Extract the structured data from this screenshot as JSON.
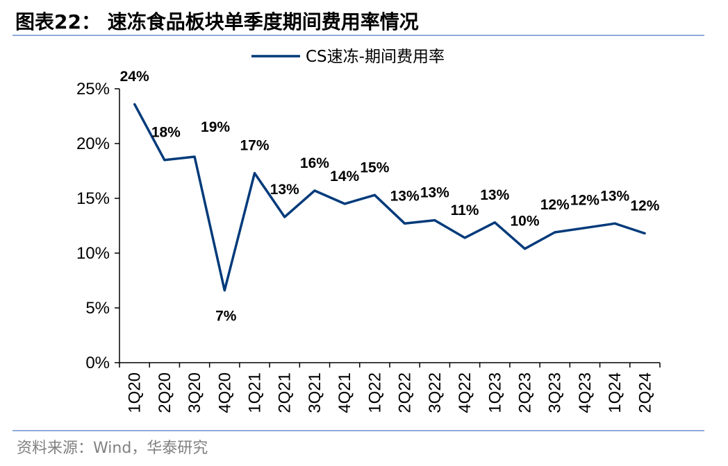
{
  "title": "图表22：  速冻食品板块单季度期间费用率情况",
  "source": "资料来源：Wind，华泰研究",
  "colors": {
    "series": "#003a7a",
    "rule": "#8faadc"
  },
  "chart_data": {
    "type": "line",
    "title": "",
    "xlabel": "",
    "ylabel": "",
    "ylim": [
      0,
      25
    ],
    "yticks": [
      "0%",
      "5%",
      "10%",
      "15%",
      "20%",
      "25%"
    ],
    "categories": [
      "1Q20",
      "2Q20",
      "3Q20",
      "4Q20",
      "1Q21",
      "2Q21",
      "3Q21",
      "4Q21",
      "1Q22",
      "2Q22",
      "3Q22",
      "4Q22",
      "1Q23",
      "2Q23",
      "3Q23",
      "4Q23",
      "1Q24",
      "2Q24"
    ],
    "legend": "top-center",
    "grid": false,
    "series": [
      {
        "name": "CS速冻-期间费用率",
        "values": [
          23.6,
          18.5,
          18.8,
          6.6,
          17.3,
          13.3,
          15.7,
          14.5,
          15.3,
          12.7,
          13.0,
          11.4,
          12.8,
          10.4,
          11.9,
          12.3,
          12.7,
          11.8
        ],
        "labels": [
          "24%",
          "18%",
          "19%",
          "7%",
          "17%",
          "13%",
          "16%",
          "14%",
          "15%",
          "13%",
          "13%",
          "11%",
          "13%",
          "10%",
          "12%",
          "12%",
          "13%",
          "12%"
        ]
      }
    ]
  }
}
